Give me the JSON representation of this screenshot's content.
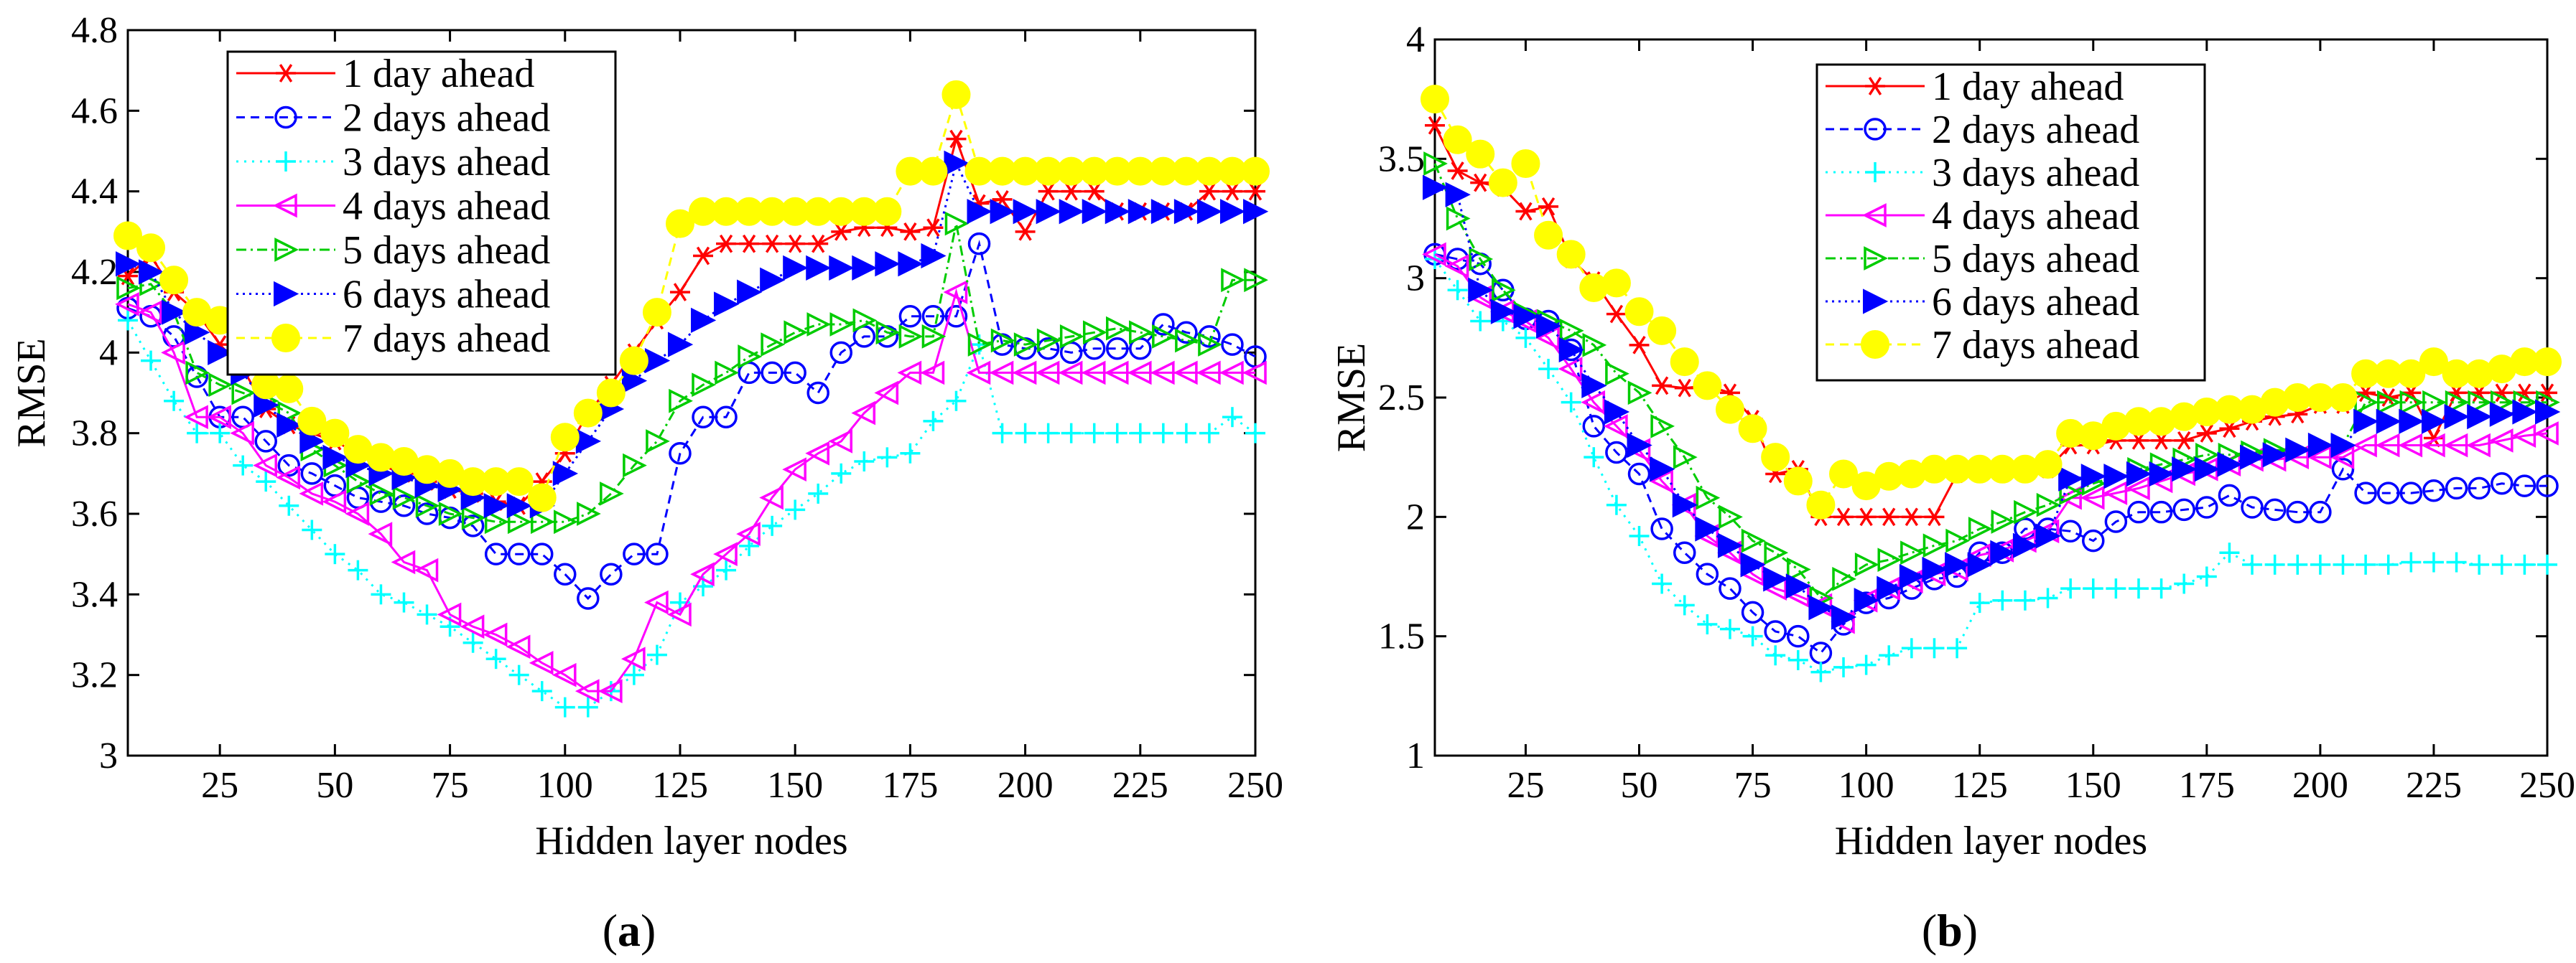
{
  "figure": {
    "panel_labels": [
      {
        "open": "(",
        "letter": "a",
        "close": ")"
      },
      {
        "open": "(",
        "letter": "b",
        "close": ")"
      }
    ]
  },
  "chart_data": [
    {
      "type": "line",
      "panel": "a",
      "title": "",
      "xlabel": "Hidden layer nodes",
      "ylabel": "RMSE",
      "xlim": [
        5,
        250
      ],
      "ylim": [
        3,
        4.8
      ],
      "xticks": [
        25,
        50,
        75,
        100,
        125,
        150,
        175,
        200,
        225,
        250
      ],
      "yticks": [
        3,
        3.2,
        3.4,
        3.6,
        3.8,
        4,
        4.2,
        4.4,
        4.6,
        4.8
      ],
      "legend_position": "top-left",
      "x": [
        5,
        10,
        15,
        20,
        25,
        30,
        35,
        40,
        45,
        50,
        55,
        60,
        65,
        70,
        75,
        80,
        85,
        90,
        95,
        100,
        105,
        110,
        115,
        120,
        125,
        130,
        135,
        140,
        145,
        150,
        155,
        160,
        165,
        170,
        175,
        180,
        185,
        190,
        195,
        200,
        205,
        210,
        215,
        220,
        225,
        230,
        235,
        240,
        245,
        250
      ],
      "series": [
        {
          "name": "1 day ahead",
          "color": "#ff0000",
          "marker": "star",
          "dash": "",
          "values": [
            4.19,
            4.24,
            4.15,
            4.1,
            4.02,
            3.96,
            3.86,
            3.82,
            3.8,
            3.78,
            3.75,
            3.72,
            3.7,
            3.68,
            3.66,
            3.65,
            3.63,
            3.62,
            3.68,
            3.75,
            3.85,
            3.92,
            4.0,
            4.08,
            4.15,
            4.24,
            4.27,
            4.27,
            4.27,
            4.27,
            4.27,
            4.3,
            4.31,
            4.31,
            4.3,
            4.31,
            4.53,
            4.37,
            4.38,
            4.3,
            4.4,
            4.4,
            4.4,
            4.35,
            4.35,
            4.35,
            4.35,
            4.4,
            4.4,
            4.4
          ]
        },
        {
          "name": "2 days ahead",
          "color": "#0000ff",
          "marker": "circle",
          "dash": "12,8",
          "values": [
            4.11,
            4.09,
            4.04,
            3.94,
            3.84,
            3.84,
            3.78,
            3.72,
            3.7,
            3.67,
            3.64,
            3.63,
            3.62,
            3.6,
            3.59,
            3.57,
            3.5,
            3.5,
            3.5,
            3.45,
            3.39,
            3.45,
            3.5,
            3.5,
            3.75,
            3.84,
            3.84,
            3.95,
            3.95,
            3.95,
            3.9,
            4.0,
            4.04,
            4.04,
            4.09,
            4.09,
            4.09,
            4.27,
            4.02,
            4.01,
            4.01,
            4.0,
            4.01,
            4.01,
            4.01,
            4.07,
            4.05,
            4.04,
            4.02,
            3.99
          ]
        },
        {
          "name": "3 days ahead",
          "color": "#00ffff",
          "marker": "plus",
          "dash": "3,8",
          "values": [
            4.08,
            3.98,
            3.88,
            3.8,
            3.8,
            3.72,
            3.68,
            3.62,
            3.56,
            3.5,
            3.46,
            3.4,
            3.38,
            3.35,
            3.32,
            3.28,
            3.24,
            3.2,
            3.16,
            3.12,
            3.12,
            3.16,
            3.2,
            3.25,
            3.38,
            3.42,
            3.46,
            3.52,
            3.57,
            3.61,
            3.65,
            3.7,
            3.73,
            3.74,
            3.75,
            3.83,
            3.88,
            4.02,
            3.8,
            3.8,
            3.8,
            3.8,
            3.8,
            3.8,
            3.8,
            3.8,
            3.8,
            3.8,
            3.84,
            3.8
          ]
        },
        {
          "name": "4 days ahead",
          "color": "#ff00ff",
          "marker": "triangle-left",
          "dash": "",
          "values": [
            4.12,
            4.1,
            4.0,
            3.84,
            3.84,
            3.8,
            3.72,
            3.69,
            3.65,
            3.63,
            3.6,
            3.55,
            3.48,
            3.46,
            3.35,
            3.32,
            3.3,
            3.27,
            3.23,
            3.2,
            3.16,
            3.16,
            3.24,
            3.38,
            3.35,
            3.45,
            3.5,
            3.55,
            3.64,
            3.71,
            3.75,
            3.78,
            3.85,
            3.9,
            3.95,
            3.95,
            4.15,
            3.95,
            3.95,
            3.95,
            3.95,
            3.95,
            3.95,
            3.95,
            3.95,
            3.95,
            3.95,
            3.95,
            3.95,
            3.95
          ]
        },
        {
          "name": "5 days ahead",
          "color": "#00cc00",
          "marker": "triangle-right",
          "dash": "14,6,3,6",
          "values": [
            4.16,
            4.17,
            4.1,
            3.95,
            3.92,
            3.9,
            3.88,
            3.85,
            3.76,
            3.72,
            3.68,
            3.65,
            3.64,
            3.62,
            3.6,
            3.59,
            3.58,
            3.58,
            3.58,
            3.58,
            3.6,
            3.65,
            3.72,
            3.78,
            3.88,
            3.92,
            3.95,
            3.99,
            4.02,
            4.05,
            4.07,
            4.07,
            4.08,
            4.05,
            4.04,
            4.04,
            4.32,
            4.02,
            4.03,
            4.02,
            4.03,
            4.04,
            4.05,
            4.06,
            4.05,
            4.04,
            4.03,
            4.02,
            4.18,
            4.18
          ]
        },
        {
          "name": "6 days ahead",
          "color": "#0000ff",
          "marker": "triangle-right-filled",
          "dash": "3,6",
          "values": [
            4.22,
            4.2,
            4.1,
            4.05,
            4.0,
            3.95,
            3.87,
            3.82,
            3.78,
            3.74,
            3.72,
            3.7,
            3.69,
            3.67,
            3.66,
            3.64,
            3.62,
            3.62,
            3.62,
            3.7,
            3.78,
            3.86,
            3.93,
            3.98,
            4.02,
            4.08,
            4.12,
            4.15,
            4.18,
            4.21,
            4.21,
            4.21,
            4.21,
            4.22,
            4.22,
            4.24,
            4.47,
            4.35,
            4.35,
            4.35,
            4.35,
            4.35,
            4.35,
            4.35,
            4.35,
            4.35,
            4.35,
            4.35,
            4.35,
            4.35
          ]
        },
        {
          "name": "7 days ahead",
          "color": "#ffff00",
          "marker": "circle-filled",
          "dash": "12,8",
          "values": [
            4.29,
            4.26,
            4.18,
            4.1,
            4.08,
            4.0,
            3.92,
            3.91,
            3.83,
            3.8,
            3.76,
            3.74,
            3.73,
            3.71,
            3.7,
            3.68,
            3.68,
            3.68,
            3.64,
            3.79,
            3.85,
            3.9,
            3.98,
            4.1,
            4.32,
            4.35,
            4.35,
            4.35,
            4.35,
            4.35,
            4.35,
            4.35,
            4.35,
            4.35,
            4.45,
            4.45,
            4.64,
            4.45,
            4.45,
            4.45,
            4.45,
            4.45,
            4.45,
            4.45,
            4.45,
            4.45,
            4.45,
            4.45,
            4.45,
            4.45
          ]
        }
      ]
    },
    {
      "type": "line",
      "panel": "b",
      "title": "",
      "xlabel": "Hidden layer nodes",
      "ylabel": "RMSE",
      "xlim": [
        5,
        250
      ],
      "ylim": [
        1,
        4
      ],
      "xticks": [
        25,
        50,
        75,
        100,
        125,
        150,
        175,
        200,
        225,
        250
      ],
      "yticks": [
        1,
        1.5,
        2,
        2.5,
        3,
        3.5,
        4
      ],
      "legend_position": "top-center",
      "x": [
        5,
        10,
        15,
        20,
        25,
        30,
        35,
        40,
        45,
        50,
        55,
        60,
        65,
        70,
        75,
        80,
        85,
        90,
        95,
        100,
        105,
        110,
        115,
        120,
        125,
        130,
        135,
        140,
        145,
        150,
        155,
        160,
        165,
        170,
        175,
        180,
        185,
        190,
        195,
        200,
        205,
        210,
        215,
        220,
        225,
        230,
        235,
        240,
        245,
        250
      ],
      "series": [
        {
          "name": "1 day ahead",
          "color": "#ff0000",
          "marker": "star",
          "dash": "",
          "values": [
            3.64,
            3.45,
            3.4,
            3.38,
            3.28,
            3.3,
            3.08,
            2.99,
            2.85,
            2.72,
            2.55,
            2.54,
            2.55,
            2.52,
            2.41,
            2.18,
            2.2,
            2.0,
            2.0,
            2.0,
            2.0,
            2.0,
            2.0,
            2.18,
            2.2,
            2.2,
            2.2,
            2.2,
            2.3,
            2.3,
            2.32,
            2.32,
            2.32,
            2.32,
            2.35,
            2.37,
            2.4,
            2.42,
            2.43,
            2.47,
            2.47,
            2.52,
            2.5,
            2.52,
            2.33,
            2.52,
            2.52,
            2.52,
            2.52,
            2.52
          ]
        },
        {
          "name": "2 days ahead",
          "color": "#0000ff",
          "marker": "circle",
          "dash": "12,8",
          "values": [
            3.1,
            3.08,
            3.06,
            2.95,
            2.83,
            2.82,
            2.7,
            2.38,
            2.27,
            2.18,
            1.95,
            1.85,
            1.76,
            1.7,
            1.6,
            1.52,
            1.5,
            1.43,
            1.55,
            1.64,
            1.66,
            1.7,
            1.74,
            1.75,
            1.85,
            1.85,
            1.95,
            1.95,
            1.94,
            1.9,
            1.98,
            2.02,
            2.02,
            2.03,
            2.04,
            2.09,
            2.04,
            2.03,
            2.02,
            2.02,
            2.2,
            2.1,
            2.1,
            2.1,
            2.11,
            2.12,
            2.12,
            2.14,
            2.13,
            2.13
          ]
        },
        {
          "name": "3 days ahead",
          "color": "#00ffff",
          "marker": "plus",
          "dash": "3,8",
          "values": [
            3.08,
            2.95,
            2.82,
            2.82,
            2.75,
            2.62,
            2.48,
            2.25,
            2.05,
            1.92,
            1.72,
            1.63,
            1.55,
            1.53,
            1.5,
            1.42,
            1.4,
            1.35,
            1.37,
            1.38,
            1.42,
            1.45,
            1.45,
            1.45,
            1.64,
            1.65,
            1.65,
            1.66,
            1.7,
            1.7,
            1.7,
            1.7,
            1.7,
            1.72,
            1.75,
            1.85,
            1.8,
            1.8,
            1.8,
            1.8,
            1.8,
            1.8,
            1.8,
            1.81,
            1.81,
            1.81,
            1.8,
            1.8,
            1.8,
            1.8
          ]
        },
        {
          "name": "4 days ahead",
          "color": "#ff00ff",
          "marker": "triangle-left",
          "dash": "",
          "values": [
            3.1,
            3.05,
            2.92,
            2.86,
            2.82,
            2.75,
            2.62,
            2.48,
            2.38,
            2.28,
            2.15,
            2.05,
            1.92,
            1.85,
            1.76,
            1.7,
            1.67,
            1.63,
            1.56,
            1.65,
            1.7,
            1.73,
            1.76,
            1.78,
            1.84,
            1.86,
            1.9,
            1.94,
            2.08,
            2.08,
            2.1,
            2.12,
            2.15,
            2.18,
            2.2,
            2.22,
            2.24,
            2.24,
            2.25,
            2.25,
            2.25,
            2.3,
            2.3,
            2.3,
            2.3,
            2.3,
            2.3,
            2.32,
            2.34,
            2.35
          ]
        },
        {
          "name": "5 days ahead",
          "color": "#00cc00",
          "marker": "triangle-right",
          "dash": "14,6,3,6",
          "values": [
            3.48,
            3.25,
            3.08,
            2.95,
            2.85,
            2.82,
            2.78,
            2.72,
            2.6,
            2.52,
            2.38,
            2.25,
            2.08,
            2.0,
            1.9,
            1.85,
            1.78,
            1.66,
            1.74,
            1.8,
            1.82,
            1.85,
            1.88,
            1.9,
            1.95,
            1.98,
            2.02,
            2.05,
            2.1,
            2.14,
            2.17,
            2.2,
            2.22,
            2.24,
            2.26,
            2.26,
            2.27,
            2.28,
            2.28,
            2.3,
            2.3,
            2.48,
            2.48,
            2.48,
            2.48,
            2.48,
            2.48,
            2.48,
            2.48,
            2.48
          ]
        },
        {
          "name": "6 days ahead",
          "color": "#0000ff",
          "marker": "triangle-right-filled",
          "dash": "3,6",
          "values": [
            3.38,
            3.35,
            2.95,
            2.86,
            2.84,
            2.8,
            2.7,
            2.55,
            2.44,
            2.3,
            2.2,
            2.05,
            1.95,
            1.88,
            1.8,
            1.74,
            1.71,
            1.62,
            1.58,
            1.65,
            1.7,
            1.75,
            1.78,
            1.8,
            1.8,
            1.85,
            1.88,
            1.92,
            2.16,
            2.17,
            2.17,
            2.18,
            2.18,
            2.2,
            2.2,
            2.22,
            2.25,
            2.26,
            2.28,
            2.3,
            2.3,
            2.4,
            2.4,
            2.4,
            2.4,
            2.42,
            2.42,
            2.43,
            2.44,
            2.44
          ]
        },
        {
          "name": "7 days ahead",
          "color": "#ffff00",
          "marker": "circle-filled",
          "dash": "12,8",
          "values": [
            3.75,
            3.58,
            3.52,
            3.4,
            3.48,
            3.18,
            3.1,
            2.96,
            2.98,
            2.86,
            2.78,
            2.65,
            2.55,
            2.45,
            2.37,
            2.25,
            2.15,
            2.05,
            2.18,
            2.13,
            2.17,
            2.18,
            2.2,
            2.2,
            2.2,
            2.2,
            2.2,
            2.22,
            2.35,
            2.34,
            2.38,
            2.4,
            2.4,
            2.42,
            2.44,
            2.45,
            2.45,
            2.48,
            2.5,
            2.5,
            2.5,
            2.6,
            2.6,
            2.6,
            2.65,
            2.6,
            2.6,
            2.62,
            2.65,
            2.65
          ]
        }
      ]
    }
  ]
}
